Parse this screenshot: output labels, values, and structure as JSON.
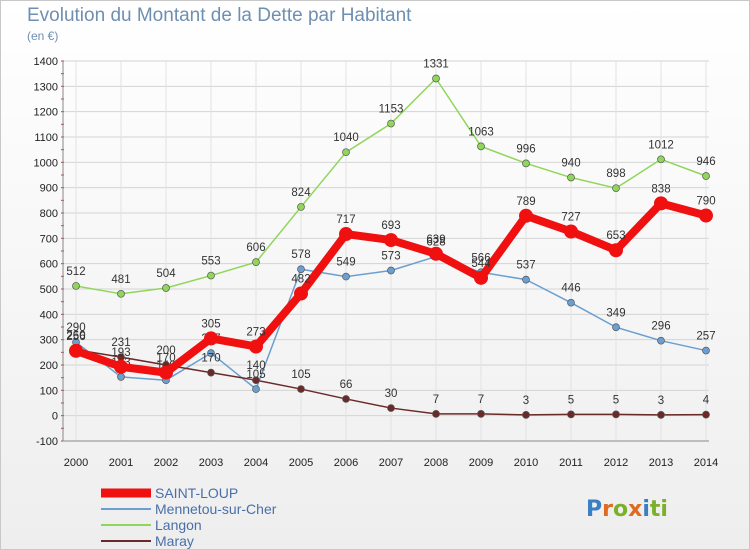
{
  "title": "Evolution du Montant de la Dette par Habitant",
  "subtitle": "(en €)",
  "logo": {
    "text": "Proxiti",
    "letters": [
      "P",
      "r",
      "o",
      "x",
      "i",
      "t",
      "i"
    ],
    "colors": [
      "#3a7fc4",
      "#e06b1f",
      "#7ab02a",
      "#e06b1f",
      "#3a7fc4",
      "#7ab02a",
      "#7ab02a"
    ]
  },
  "chart_data": {
    "type": "line",
    "x": [
      "2000",
      "2001",
      "2002",
      "2003",
      "2004",
      "2005",
      "2006",
      "2007",
      "2008",
      "2009",
      "2010",
      "2011",
      "2012",
      "2013",
      "2014"
    ],
    "ylim": [
      -100,
      1400
    ],
    "yticks": [
      "-100",
      "0",
      "100",
      "200",
      "300",
      "400",
      "500",
      "600",
      "700",
      "800",
      "900",
      "1000",
      "1100",
      "1200",
      "1300",
      "1400"
    ],
    "grid": true,
    "legend_position": "bottom-left",
    "series": [
      {
        "name": "Langon",
        "color": "#8fd65a",
        "values": [
          512,
          481,
          504,
          553,
          606,
          824,
          1040,
          1153,
          1331,
          1063,
          996,
          940,
          898,
          1012,
          946
        ],
        "labels": [
          "512",
          "481",
          "504",
          "553",
          "606",
          "824",
          "1040",
          "1153",
          "1331",
          "1063",
          "996",
          "940",
          "898",
          "1012",
          "946"
        ]
      },
      {
        "name": "Mennetou-sur-Cher",
        "color": "#6a9fcf",
        "values": [
          290,
          153,
          140,
          247,
          105,
          578,
          549,
          573,
          628,
          566,
          537,
          446,
          349,
          296,
          257
        ],
        "labels": [
          "290",
          "153",
          "140",
          "247",
          "105",
          "578",
          "549",
          "573",
          "628",
          "566",
          "537",
          "446",
          "349",
          "296",
          "257"
        ]
      },
      {
        "name": "Maray",
        "color": "#6b2a2a",
        "values": [
          260,
          231,
          200,
          170,
          140,
          105,
          66,
          30,
          7,
          7,
          3,
          5,
          5,
          3,
          4
        ],
        "labels": [
          "260",
          "231",
          "200",
          "170",
          "140",
          "105",
          "66",
          "30",
          "7",
          "7",
          "3",
          "5",
          "5",
          "3",
          "4"
        ]
      },
      {
        "name": "SAINT-LOUP",
        "color": "#f01010",
        "values": [
          256,
          193,
          170,
          305,
          273,
          482,
          717,
          693,
          639,
          544,
          789,
          727,
          653,
          838,
          790
        ],
        "labels": [
          "256",
          "193",
          "170",
          "305",
          "273",
          "482",
          "717",
          "693",
          "639",
          "544",
          "789",
          "727",
          "653",
          "838",
          "790"
        ]
      }
    ],
    "legend_order": [
      "SAINT-LOUP",
      "Mennetou-sur-Cher",
      "Langon",
      "Maray"
    ]
  }
}
